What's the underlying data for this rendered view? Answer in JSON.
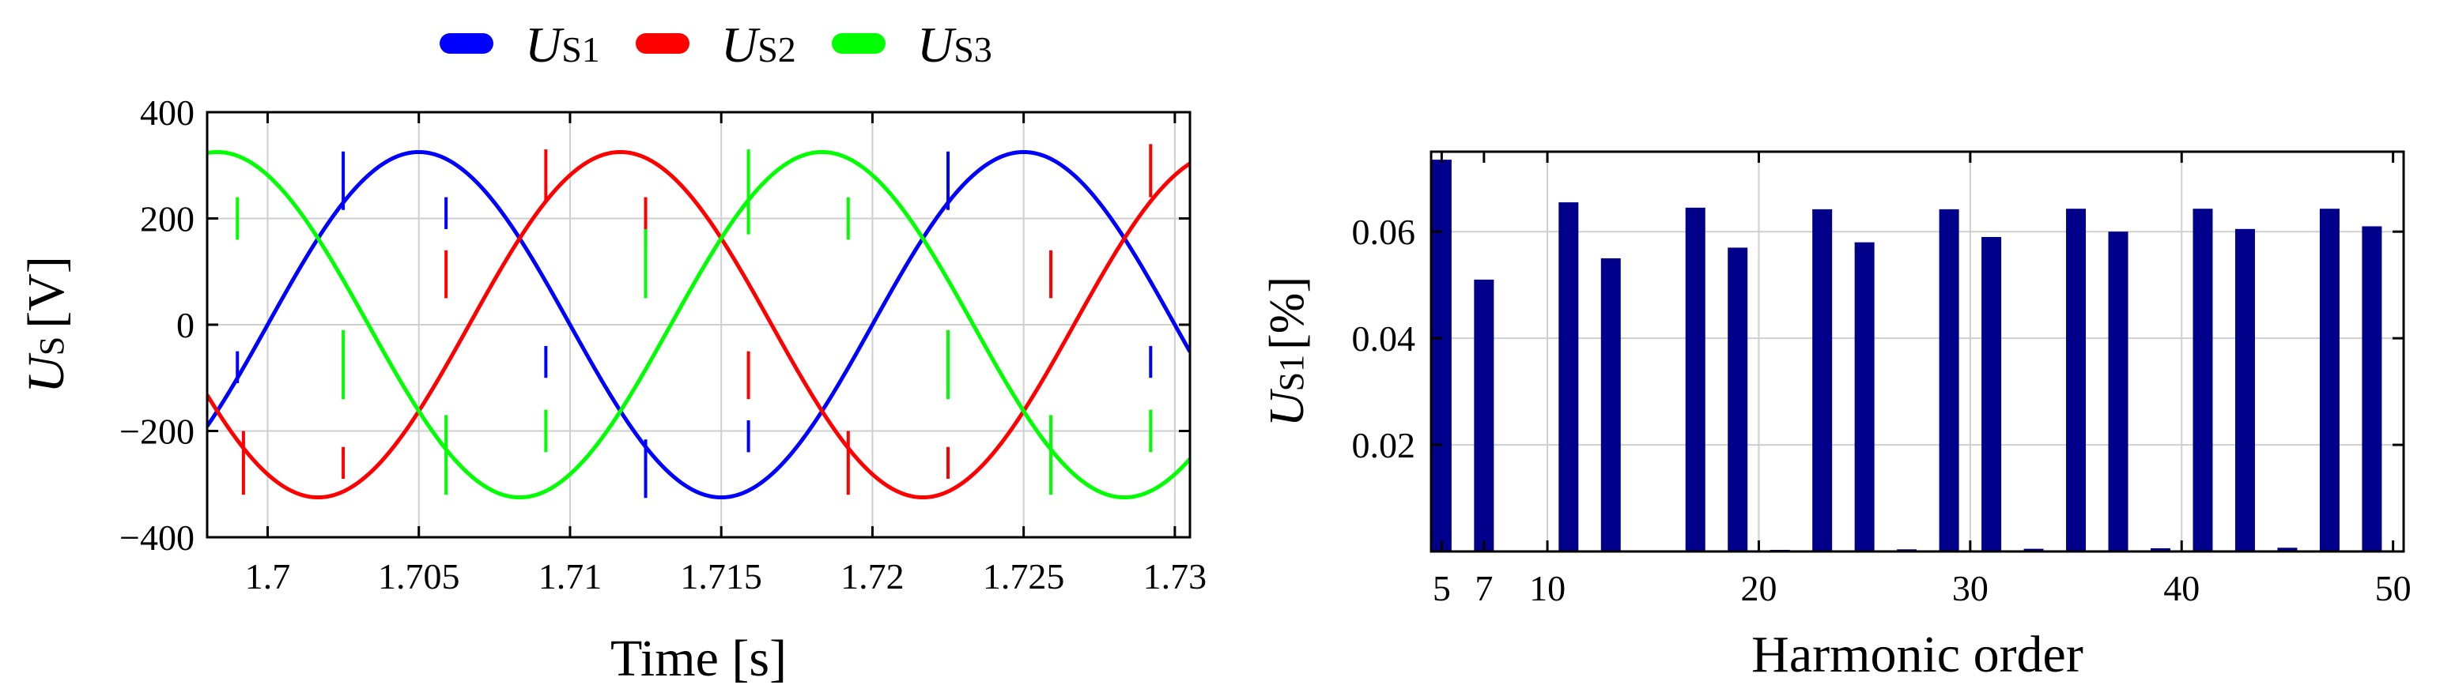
{
  "chart_data": [
    {
      "type": "line",
      "title": "",
      "xlabel": "Time [s]",
      "ylabel": {
        "main": "U",
        "sub": "S",
        "unit": "[V]"
      },
      "xlim": [
        1.698,
        1.7305
      ],
      "ylim": [
        -400,
        400
      ],
      "xticks": [
        1.7,
        1.705,
        1.71,
        1.715,
        1.72,
        1.725,
        1.73
      ],
      "xtick_labels": [
        "1.7",
        "1.705",
        "1.71",
        "1.715",
        "1.72",
        "1.725",
        "1.73"
      ],
      "yticks": [
        -400,
        -200,
        0,
        200,
        400
      ],
      "ytick_labels": [
        "−400",
        "−200",
        "0",
        "200",
        "400"
      ],
      "grid": true,
      "legend": "top",
      "sampling": {
        "amplitude": 325,
        "frequency_hz": 50,
        "t_start": 1.698,
        "t_end": 1.7305,
        "step": 5e-05
      },
      "series": [
        {
          "name": "U_S1",
          "label_main": "U",
          "label_sub": "S1",
          "color": "#0000ff",
          "phase_deg": 0,
          "spikes": [
            {
              "t": 1.699,
              "y": -50,
              "dy": -60
            },
            {
              "t": 1.7025,
              "y": 326,
              "dy": -110
            },
            {
              "t": 1.7059,
              "y": 240,
              "dy": -60
            },
            {
              "t": 1.7092,
              "y": -40,
              "dy": -60
            },
            {
              "t": 1.7125,
              "y": -326,
              "dy": 110
            },
            {
              "t": 1.7159,
              "y": -240,
              "dy": 60
            },
            {
              "t": 1.7225,
              "y": 326,
              "dy": -110
            },
            {
              "t": 1.7292,
              "y": -40,
              "dy": -60
            }
          ]
        },
        {
          "name": "U_S2",
          "label_main": "U",
          "label_sub": "S2",
          "color": "#ff0000",
          "phase_deg": -120,
          "spikes": [
            {
              "t": 1.6992,
              "y": -200,
              "dy": -120
            },
            {
              "t": 1.7025,
              "y": -230,
              "dy": -60
            },
            {
              "t": 1.7059,
              "y": 50,
              "dy": 90
            },
            {
              "t": 1.7092,
              "y": 230,
              "dy": 100
            },
            {
              "t": 1.7125,
              "y": 240,
              "dy": -90
            },
            {
              "t": 1.7159,
              "y": -50,
              "dy": -90
            },
            {
              "t": 1.7192,
              "y": -200,
              "dy": -120
            },
            {
              "t": 1.7225,
              "y": -230,
              "dy": -60
            },
            {
              "t": 1.7259,
              "y": 50,
              "dy": 90
            },
            {
              "t": 1.7292,
              "y": 240,
              "dy": 100
            }
          ]
        },
        {
          "name": "U_S3",
          "label_main": "U",
          "label_sub": "S3",
          "color": "#00ff00",
          "phase_deg": 120,
          "spikes": [
            {
              "t": 1.699,
              "y": 240,
              "dy": -80
            },
            {
              "t": 1.7025,
              "y": -10,
              "dy": -130
            },
            {
              "t": 1.7059,
              "y": -170,
              "dy": -150
            },
            {
              "t": 1.7092,
              "y": -240,
              "dy": 80
            },
            {
              "t": 1.7125,
              "y": 50,
              "dy": 130
            },
            {
              "t": 1.7159,
              "y": 170,
              "dy": 160
            },
            {
              "t": 1.7192,
              "y": 240,
              "dy": -80
            },
            {
              "t": 1.7225,
              "y": -10,
              "dy": -130
            },
            {
              "t": 1.7259,
              "y": -170,
              "dy": -150
            },
            {
              "t": 1.7292,
              "y": -240,
              "dy": 80
            }
          ]
        }
      ]
    },
    {
      "type": "bar",
      "title": "",
      "xlabel": "Harmonic order",
      "ylabel": {
        "main": "U",
        "sub": "S1",
        "unit": "[%]"
      },
      "xlim": [
        4.5,
        50.5
      ],
      "ylim": [
        0,
        0.075
      ],
      "xticks": [
        5,
        7,
        10,
        20,
        30,
        40,
        50
      ],
      "xtick_labels": [
        "5",
        "7",
        "10",
        "20",
        "30",
        "40",
        "50"
      ],
      "yticks": [
        0.02,
        0.04,
        0.06
      ],
      "ytick_labels": [
        "0.02",
        "0.04",
        "0.06"
      ],
      "grid": true,
      "color": "#00008b",
      "x": [
        5,
        7,
        11,
        13,
        15,
        17,
        19,
        21,
        23,
        25,
        27,
        29,
        31,
        33,
        35,
        37,
        39,
        41,
        43,
        45,
        47,
        49
      ],
      "values": [
        0.0735,
        0.051,
        0.0655,
        0.055,
        0.0001,
        0.0645,
        0.057,
        0.0003,
        0.0642,
        0.058,
        0.0004,
        0.0642,
        0.059,
        0.0005,
        0.0643,
        0.06,
        0.0006,
        0.0643,
        0.0605,
        0.0007,
        0.0643,
        0.061
      ]
    }
  ]
}
